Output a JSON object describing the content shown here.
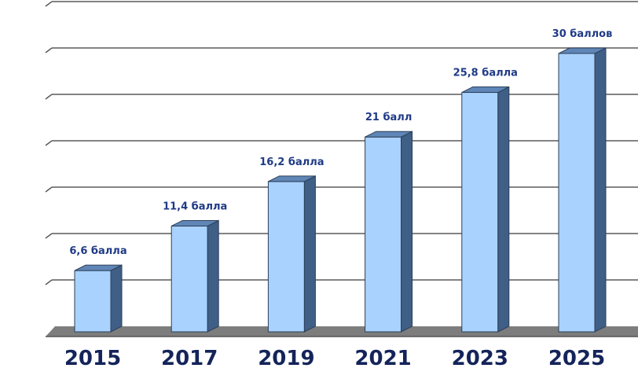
{
  "chart_data": {
    "type": "bar",
    "style": "3d-column",
    "categories": [
      "2015",
      "2017",
      "2019",
      "2021",
      "2023",
      "2025"
    ],
    "values": [
      6.6,
      11.4,
      16.2,
      21,
      25.8,
      30
    ],
    "data_labels": [
      "6,6 балла",
      "11,4 балла",
      "16,2 балла",
      "21 балл",
      "25,8 балла",
      "30 баллов"
    ],
    "title": "",
    "xlabel": "",
    "ylabel": "",
    "ylim": [
      0,
      35
    ],
    "grid": true,
    "legend": "none",
    "colors": {
      "bar_front": "#a9d2ff",
      "bar_side": "#3f5f86",
      "bar_top": "#5f86b6",
      "bar_outline": "#2c3f58",
      "gridline": "#5a5a5a",
      "floor": "#7d7d7d",
      "category_label": "#14245a",
      "data_label": "#1f3a86"
    }
  }
}
